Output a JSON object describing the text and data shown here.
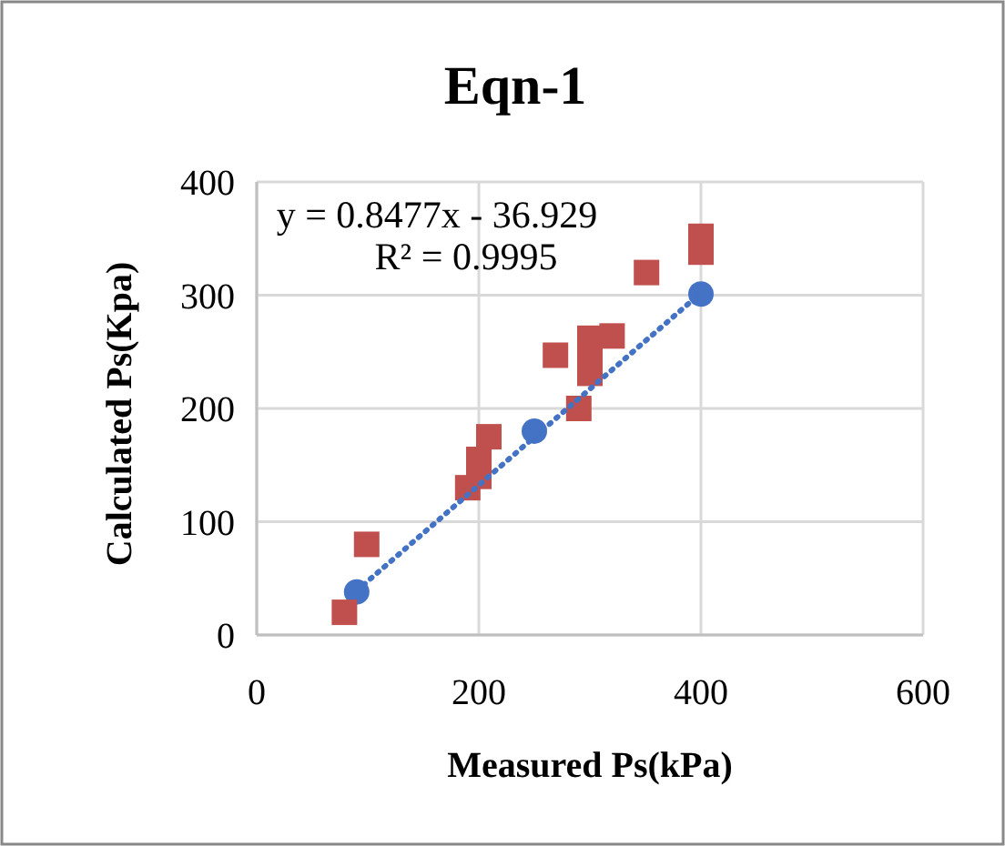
{
  "chart_data": {
    "type": "scatter",
    "title": "Eqn-1",
    "xlabel": "Measured Ps(kPa)",
    "ylabel": "Calculated Ps(Kpa)",
    "xlim": [
      0,
      600
    ],
    "ylim": [
      0,
      400
    ],
    "xticks": [
      0,
      200,
      400,
      600
    ],
    "yticks": [
      0,
      100,
      200,
      300,
      400
    ],
    "grid": true,
    "annotations": [
      "y = 0.8477x - 36.929",
      "R² = 0.9995"
    ],
    "series": [
      {
        "color": "#4472c4",
        "marker": "circle",
        "x": [
          90,
          250,
          400
        ],
        "values": [
          38,
          180,
          301
        ]
      },
      {
        "color": "#c0504d",
        "marker": "square",
        "x": [
          79,
          99,
          190,
          200,
          200,
          209,
          269,
          290,
          300,
          300,
          300,
          320,
          351,
          400,
          400
        ],
        "values": [
          20,
          80,
          130,
          140,
          155,
          175,
          247,
          200,
          231,
          244,
          262,
          264,
          320,
          338,
          352
        ]
      },
      {
        "type": "line",
        "color": "#4472c4",
        "marker": "none",
        "line_style": "dotted",
        "x": [
          90,
          400
        ],
        "values": [
          39,
          302
        ]
      }
    ]
  }
}
